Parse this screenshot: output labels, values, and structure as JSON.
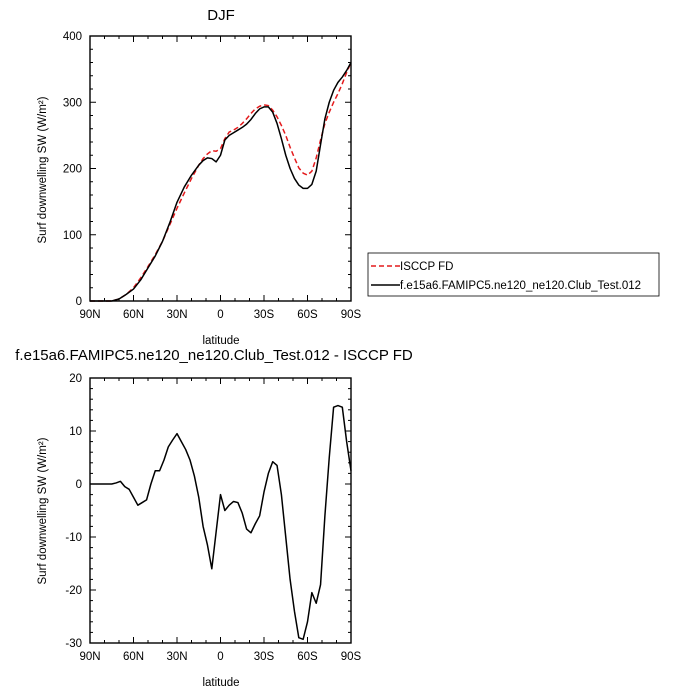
{
  "chart_data": [
    {
      "type": "line",
      "title": "DJF",
      "xlabel": "latitude",
      "ylabel": "Surf downwelling SW (W/m²)",
      "xlim": [
        90,
        -90
      ],
      "ylim": [
        0,
        400
      ],
      "x_ticks": [
        90,
        60,
        30,
        0,
        -30,
        -60,
        -90
      ],
      "x_tick_labels": [
        "90N",
        "60N",
        "30N",
        "0",
        "30S",
        "60S",
        "90S"
      ],
      "y_ticks": [
        0,
        100,
        200,
        300,
        400
      ],
      "y_tick_labels": [
        "0",
        "100",
        "200",
        "300",
        "400"
      ],
      "legend_position": "outside-right",
      "series": [
        {
          "name": "ISCCP FD",
          "color": "#e41a1c",
          "dash": "dashed",
          "x": [
            90,
            85,
            80,
            75,
            70,
            65,
            60,
            55,
            50,
            45,
            40,
            35,
            30,
            25,
            20,
            15,
            12,
            9,
            6,
            3,
            0,
            -3,
            -6,
            -9,
            -12,
            -15,
            -18,
            -21,
            -24,
            -27,
            -30,
            -33,
            -36,
            -39,
            -42,
            -45,
            -48,
            -51,
            -54,
            -57,
            -60,
            -63,
            -66,
            -69,
            -72,
            -75,
            -78,
            -81,
            -84,
            -87,
            -90
          ],
          "y": [
            0,
            0,
            0,
            0,
            3,
            10,
            20,
            35,
            52,
            70,
            90,
            115,
            140,
            163,
            185,
            205,
            215,
            222,
            227,
            226,
            230,
            245,
            255,
            258,
            262,
            268,
            275,
            283,
            290,
            294,
            296,
            295,
            288,
            278,
            265,
            250,
            232,
            216,
            201,
            193,
            190,
            196,
            216,
            243,
            268,
            285,
            300,
            313,
            328,
            345,
            360
          ]
        },
        {
          "name": "f.e15a6.FAMIPC5.ne120_ne120.Club_Test.012",
          "color": "#000000",
          "dash": "solid",
          "x": [
            90,
            85,
            80,
            75,
            70,
            65,
            60,
            55,
            50,
            45,
            40,
            35,
            30,
            25,
            20,
            15,
            12,
            9,
            6,
            3,
            0,
            -3,
            -6,
            -9,
            -12,
            -15,
            -18,
            -21,
            -24,
            -27,
            -30,
            -33,
            -36,
            -39,
            -42,
            -45,
            -48,
            -51,
            -54,
            -57,
            -60,
            -63,
            -66,
            -69,
            -72,
            -75,
            -78,
            -81,
            -84,
            -87,
            -90
          ],
          "y": [
            0,
            0,
            0,
            0,
            3,
            10,
            18,
            32,
            50,
            68,
            90,
            118,
            149,
            172,
            190,
            205,
            212,
            216,
            215,
            210,
            220,
            243,
            250,
            254,
            258,
            262,
            267,
            274,
            283,
            290,
            293,
            293,
            285,
            268,
            245,
            220,
            200,
            185,
            175,
            170,
            170,
            176,
            196,
            236,
            275,
            300,
            318,
            330,
            338,
            348,
            360
          ]
        }
      ]
    },
    {
      "type": "line",
      "title": "f.e15a6.FAMIPC5.ne120_ne120.Club_Test.012 - ISCCP FD",
      "xlabel": "latitude",
      "ylabel": "Surf downwelling SW (W/m²)",
      "xlim": [
        90,
        -90
      ],
      "ylim": [
        -30,
        20
      ],
      "x_ticks": [
        90,
        60,
        30,
        0,
        -30,
        -60,
        -90
      ],
      "x_tick_labels": [
        "90N",
        "60N",
        "30N",
        "0",
        "30S",
        "60S",
        "90S"
      ],
      "y_ticks": [
        -30,
        -20,
        -10,
        0,
        10,
        20
      ],
      "y_tick_labels": [
        "-30",
        "-20",
        "-10",
        "0",
        "10",
        "20"
      ],
      "series": [
        {
          "color": "#000000",
          "dash": "solid",
          "x": [
            90,
            85,
            80,
            75,
            72,
            69,
            66,
            63,
            60,
            57,
            54,
            51,
            48,
            45,
            42,
            39,
            36,
            33,
            30,
            27,
            24,
            21,
            18,
            15,
            12,
            9,
            6,
            3,
            0,
            -3,
            -6,
            -9,
            -12,
            -15,
            -18,
            -21,
            -24,
            -27,
            -30,
            -33,
            -36,
            -39,
            -42,
            -45,
            -48,
            -51,
            -54,
            -57,
            -60,
            -63,
            -66,
            -69,
            -72,
            -75,
            -78,
            -81,
            -84,
            -87,
            -90
          ],
          "y": [
            0,
            0,
            0,
            0,
            0.2,
            0.5,
            -0.5,
            -1.0,
            -2.5,
            -4.0,
            -3.5,
            -3.0,
            0,
            2.5,
            2.5,
            4.5,
            7.0,
            8.3,
            9.5,
            8.0,
            6.5,
            4.5,
            1.5,
            -2.5,
            -8.0,
            -11.5,
            -16.0,
            -9.0,
            -2.0,
            -5.0,
            -4.0,
            -3.3,
            -3.5,
            -5.5,
            -8.5,
            -9.2,
            -7.5,
            -6.0,
            -1.5,
            2.0,
            4.2,
            3.5,
            -2.0,
            -10.0,
            -18.0,
            -24.0,
            -29.0,
            -29.3,
            -26.0,
            -20.5,
            -22.5,
            -19.0,
            -6.0,
            5.0,
            14.5,
            14.8,
            14.5,
            8.0,
            2.5
          ]
        }
      ]
    }
  ]
}
